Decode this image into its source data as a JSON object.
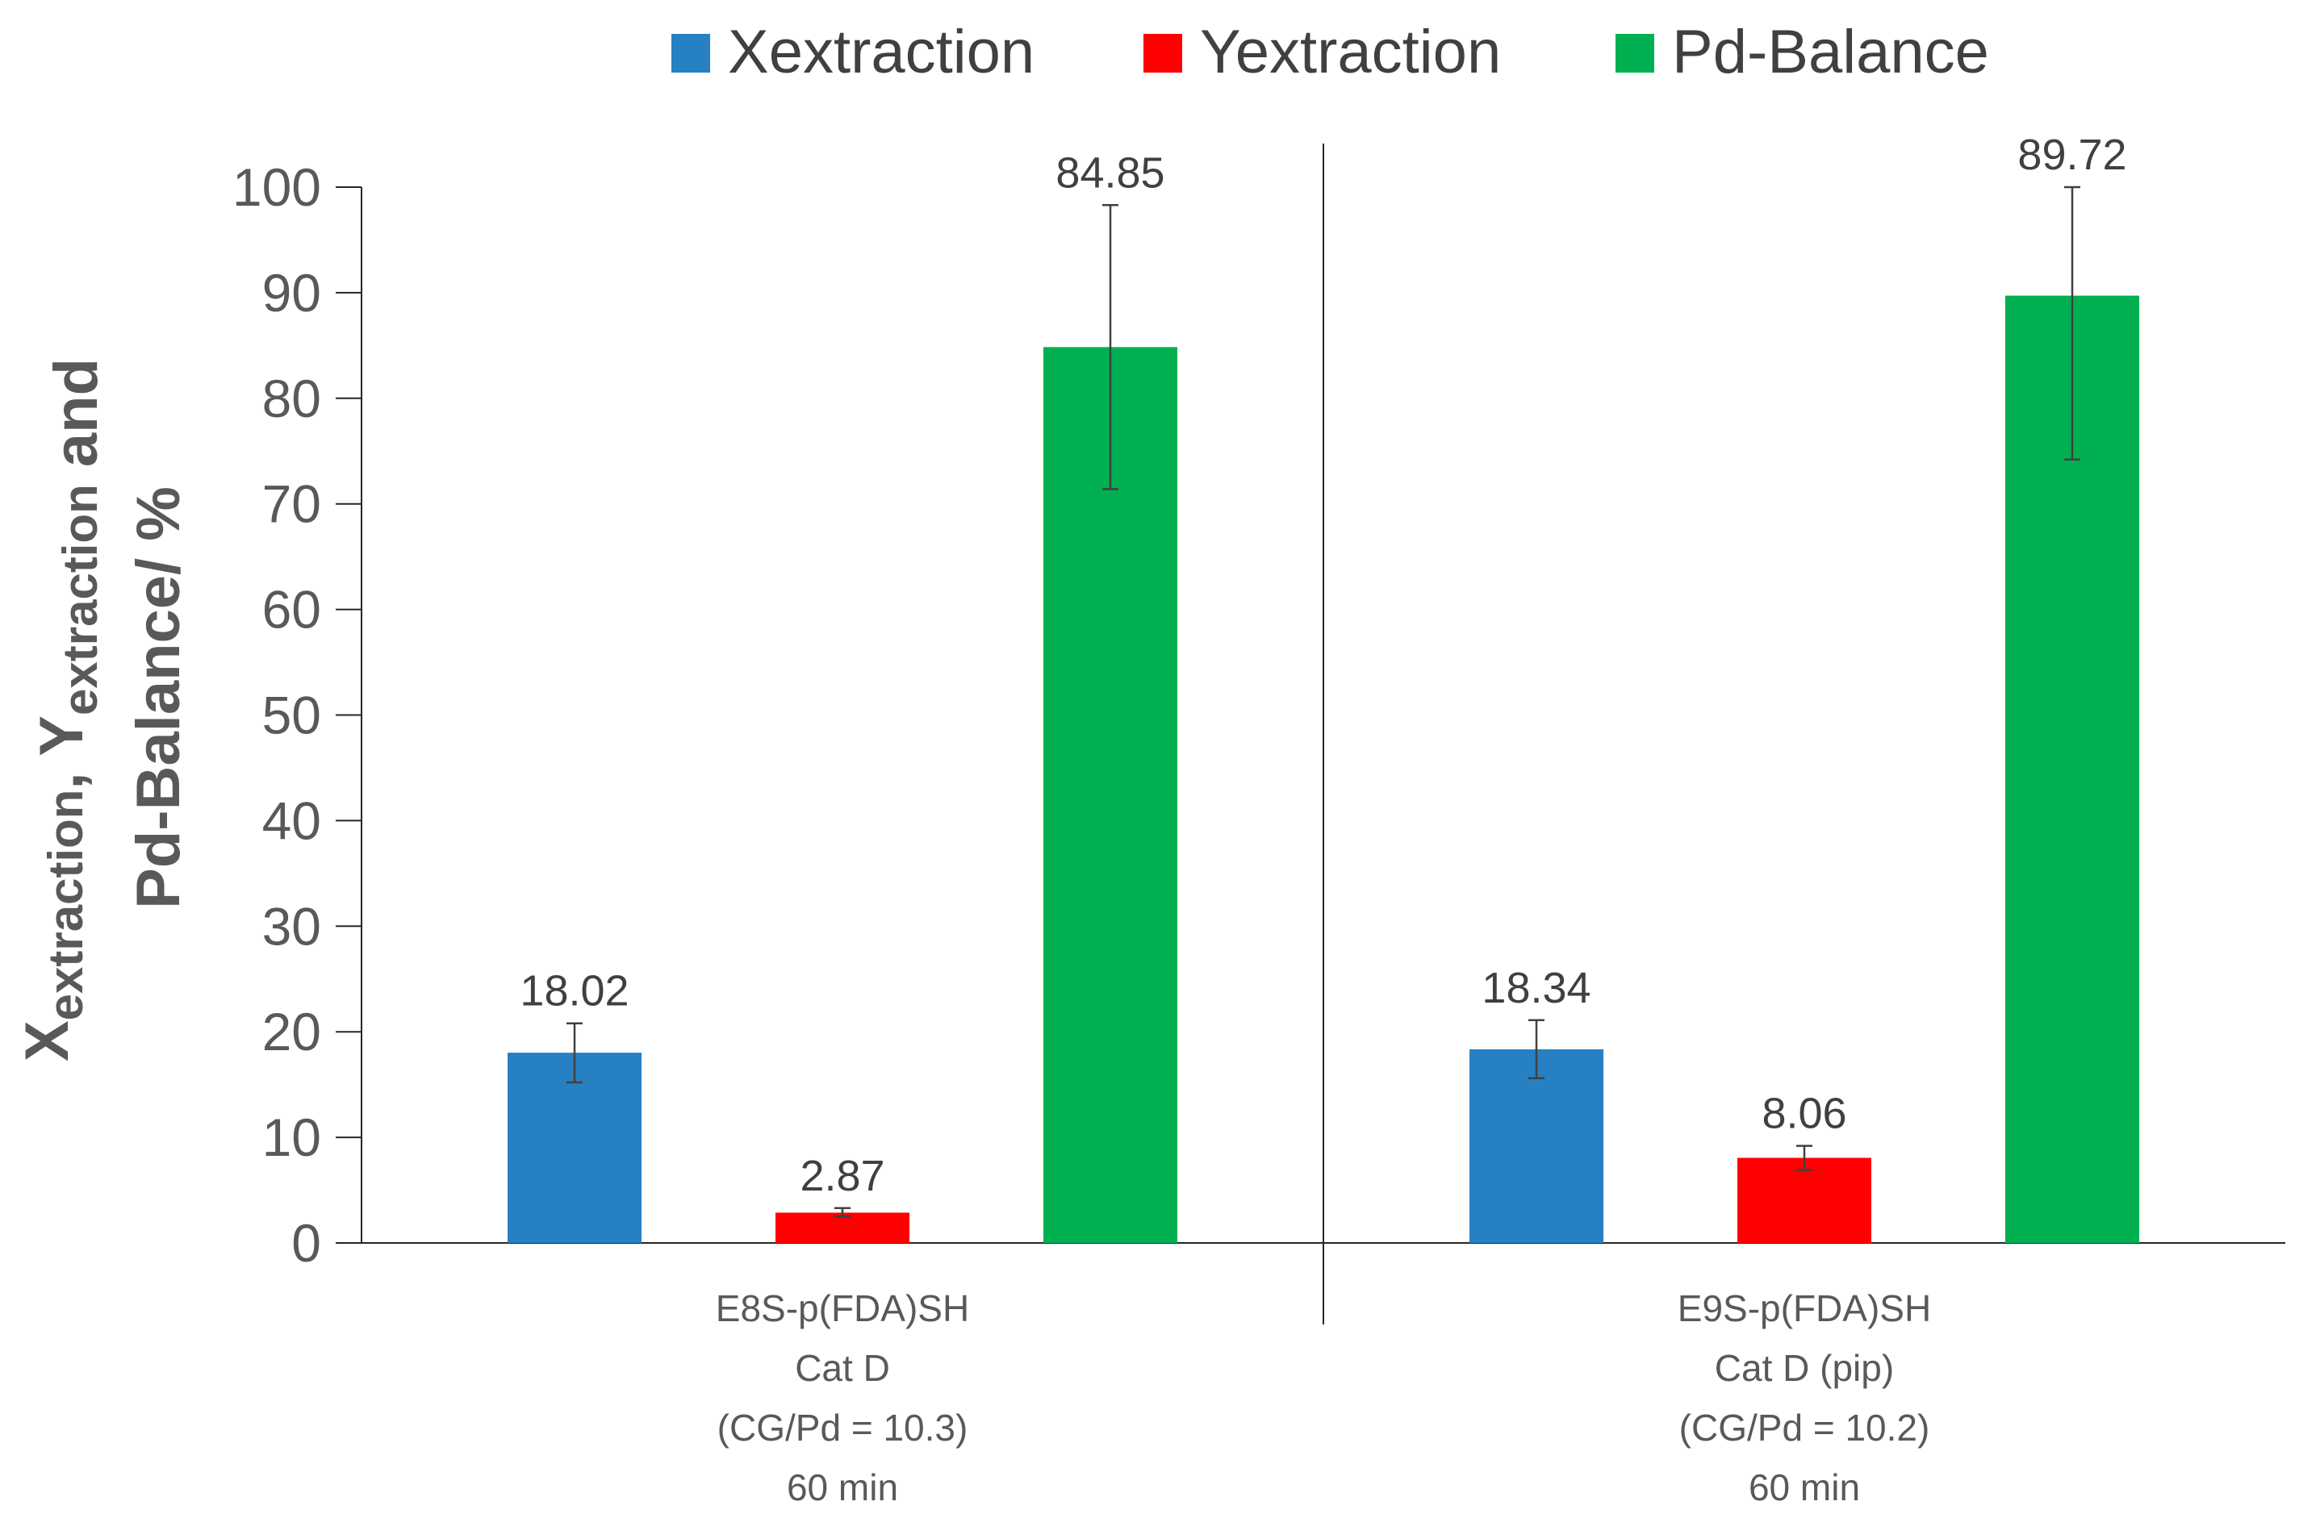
{
  "chart_data": {
    "type": "bar",
    "title": "",
    "xlabel": "",
    "ylabel": {
      "line1": [
        {
          "main": "X",
          "sub": "extraction"
        },
        {
          "main": ", Y",
          "sub": "extraction"
        },
        {
          "main": " and",
          "sub": ""
        }
      ],
      "line2": "Pd-Balance/ %"
    },
    "ylim": [
      0,
      100
    ],
    "yticks": [
      0,
      10,
      20,
      30,
      40,
      50,
      60,
      70,
      80,
      90,
      100
    ],
    "legend_position": "top",
    "categories": [
      [
        "E8S-p(FDA)SH",
        "Cat D",
        "(CG/Pd = 10.3)",
        "60 min"
      ],
      [
        "E9S-p(FDA)SH",
        "Cat D (pip)",
        "(CG/Pd = 10.2)",
        "60 min"
      ]
    ],
    "series": [
      {
        "name": "Xextraction",
        "color": "#2680C2",
        "values": [
          18.02,
          18.34
        ],
        "labels": [
          "18.02",
          "18.34"
        ],
        "error_low": [
          15.2,
          15.6
        ],
        "error_high": [
          20.8,
          21.1
        ]
      },
      {
        "name": "Yextraction",
        "color": "#FF0000",
        "values": [
          2.87,
          8.06
        ],
        "labels": [
          "2.87",
          "8.06"
        ],
        "error_low": [
          2.5,
          6.9
        ],
        "error_high": [
          3.3,
          9.2
        ]
      },
      {
        "name": "Pd-Balance",
        "color": "#00B050",
        "values": [
          84.85,
          89.72
        ],
        "labels": [
          "84.85",
          "89.72"
        ],
        "error_low": [
          71.4,
          74.2
        ],
        "error_high": [
          98.3,
          100
        ]
      }
    ]
  }
}
